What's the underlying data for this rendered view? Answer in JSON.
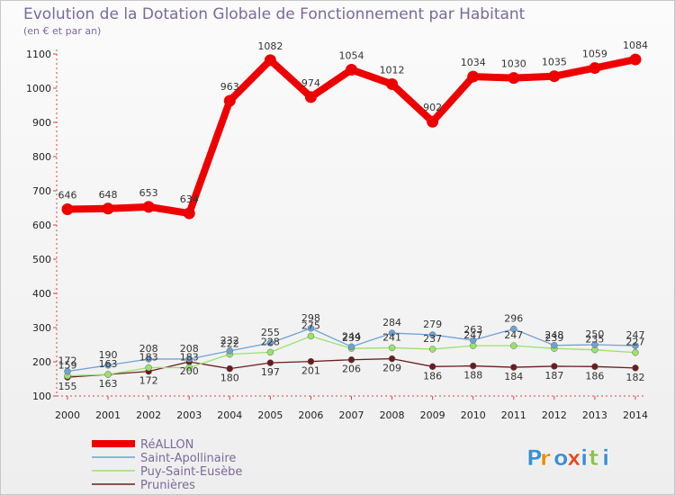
{
  "chart_data": {
    "type": "line",
    "title": "Evolution de la Dotation Globale de Fonctionnement par Habitant",
    "subtitle": "(en € et par an)",
    "xlabel": "",
    "ylabel": "",
    "x": [
      "2000",
      "2001",
      "2002",
      "2003",
      "2004",
      "2005",
      "2006",
      "2007",
      "2008",
      "2009",
      "2010",
      "2011",
      "2012",
      "2013",
      "2014"
    ],
    "yticks": [
      100,
      200,
      300,
      400,
      500,
      600,
      700,
      800,
      900,
      1000,
      1100
    ],
    "ylim": [
      100,
      1100
    ],
    "series": [
      {
        "name": "RéALLON",
        "color": "#ee0000",
        "values": [
          646,
          648,
          653,
          634,
          963,
          1082,
          974,
          1054,
          1012,
          902,
          1034,
          1030,
          1035,
          1059,
          1084
        ],
        "show_labels": true
      },
      {
        "name": "Saint-Apollinaire",
        "color": "#6fa2d3",
        "values": [
          172,
          190,
          208,
          208,
          232,
          255,
          298,
          244,
          284,
          279,
          263,
          296,
          248,
          250,
          247
        ],
        "show_labels": true
      },
      {
        "name": "Puy-Saint-Eusèbe",
        "color": "#99e36b",
        "values": [
          159,
          163,
          183,
          183,
          222,
          228,
          275,
          239,
          241,
          237,
          247,
          247,
          239,
          235,
          227
        ],
        "show_labels": true
      },
      {
        "name": "Prunières",
        "color": "#6b1c1c",
        "values": [
          155,
          163,
          172,
          200,
          180,
          197,
          201,
          206,
          209,
          186,
          188,
          184,
          187,
          186,
          182
        ],
        "show_labels": true
      }
    ],
    "legend_position": "bottom-left"
  },
  "logo": {
    "text": "Proxiti"
  }
}
